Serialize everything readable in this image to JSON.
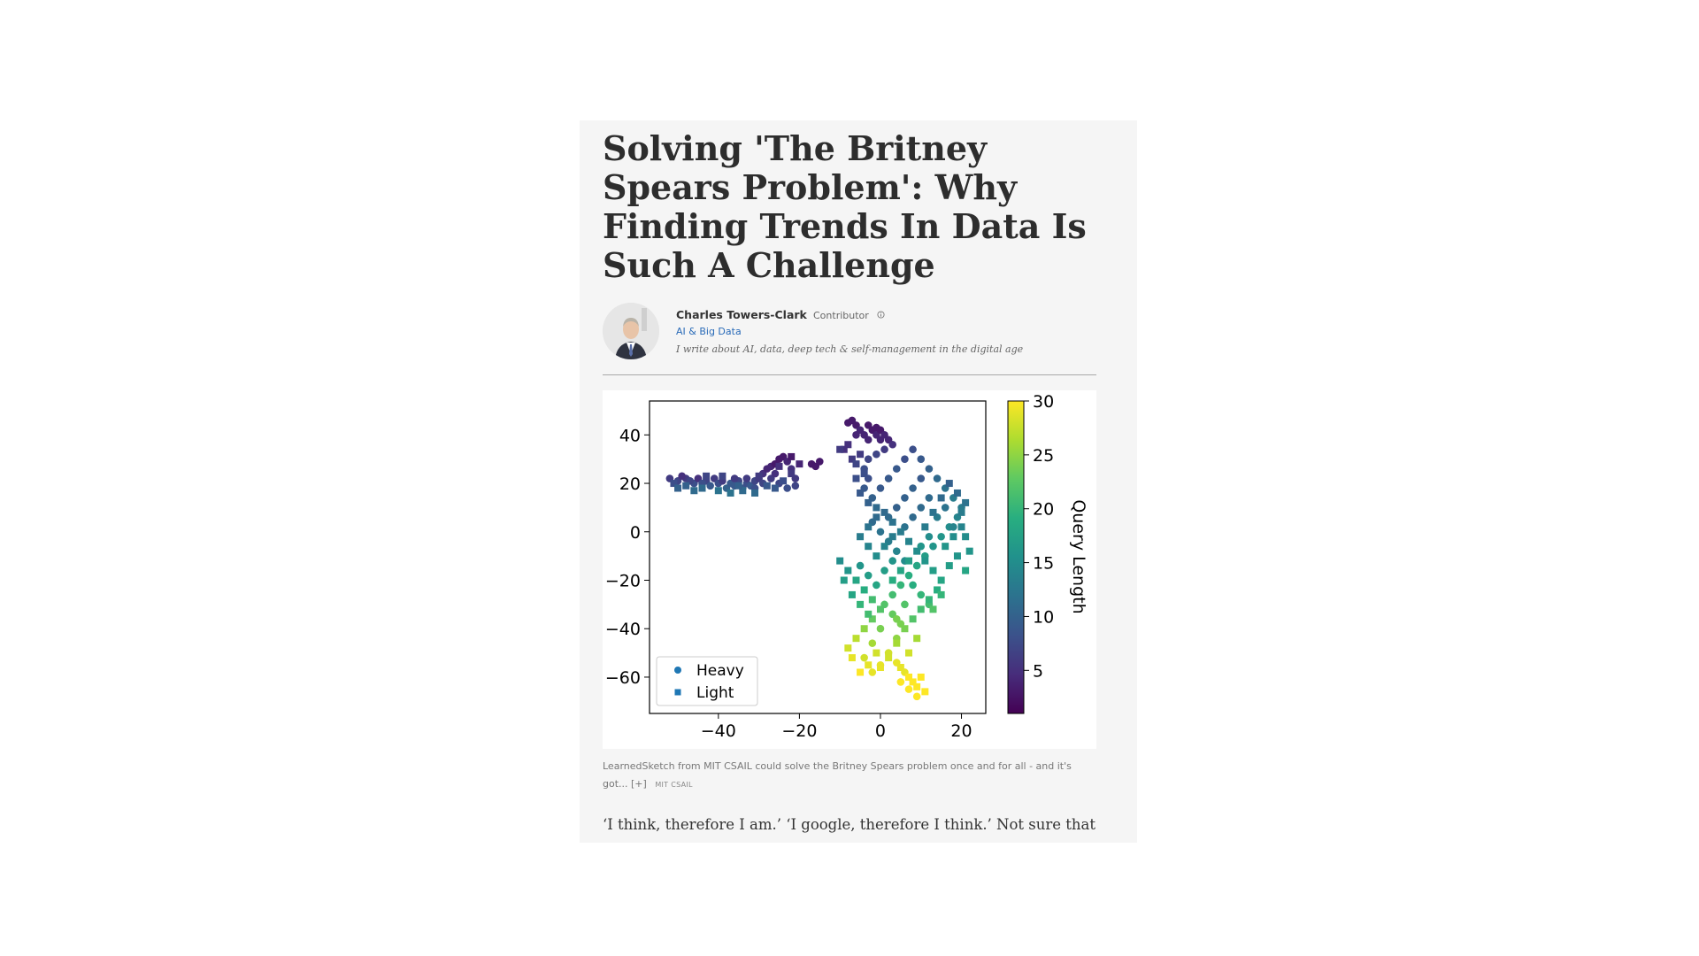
{
  "article": {
    "headline": "Solving 'The Britney Spears Problem': Why Finding Trends In Data Is Such A Challenge",
    "author": {
      "name": "Charles Towers-Clark",
      "role": "Contributor",
      "channel": "AI & Big Data",
      "bio": "I write about AI, data, deep tech & self-management in the digital age",
      "avatar_icon": "author-portrait"
    },
    "figure": {
      "caption": "LearnedSketch from MIT CSAIL could solve the Britney Spears problem once and for all - and it's got... [+]",
      "credit": "MIT CSAIL"
    },
    "body_text": "‘I think, therefore I am.’ ‘I google, therefore I think.’ Not sure that Descartes would agree with this. Search engines are not new, giving us"
  },
  "chart_data": {
    "type": "scatter",
    "xlim": [
      -57,
      26
    ],
    "ylim": [
      -75,
      54
    ],
    "x_ticks": [
      "−40",
      "−20",
      "0",
      "20"
    ],
    "x_tick_values": [
      -40,
      -20,
      0,
      20
    ],
    "y_ticks": [
      "40",
      "20",
      "0",
      "−20",
      "−40",
      "−60"
    ],
    "y_tick_values": [
      40,
      20,
      0,
      -20,
      -40,
      -60
    ],
    "colorbar": {
      "label": "Query Length",
      "range": [
        1,
        30
      ],
      "ticks": [
        "30",
        "25",
        "20",
        "15",
        "10",
        "5"
      ],
      "tick_values": [
        30,
        25,
        20,
        15,
        10,
        5
      ],
      "colormap": "viridis"
    },
    "legend": {
      "position": "lower-left",
      "entries": [
        {
          "label": "Heavy",
          "marker": "circle",
          "color": "#1f77b4"
        },
        {
          "label": "Light",
          "marker": "square",
          "color": "#1f77b4"
        }
      ]
    },
    "series": [
      {
        "name": "Heavy",
        "marker": "circle",
        "points": [
          [
            -52,
            22,
            6
          ],
          [
            -50,
            21,
            7
          ],
          [
            -48,
            22,
            6
          ],
          [
            -46,
            20,
            8
          ],
          [
            -45,
            22,
            5
          ],
          [
            -43,
            21,
            7
          ],
          [
            -42,
            19,
            9
          ],
          [
            -41,
            22,
            6
          ],
          [
            -40,
            20,
            8
          ],
          [
            -39,
            21,
            6
          ],
          [
            -38,
            18,
            10
          ],
          [
            -37,
            20,
            9
          ],
          [
            -36,
            19,
            9
          ],
          [
            -35,
            21,
            7
          ],
          [
            -34,
            18,
            9
          ],
          [
            -33,
            20,
            8
          ],
          [
            -32,
            19,
            9
          ],
          [
            -31,
            21,
            7
          ],
          [
            -30,
            22,
            6
          ],
          [
            -29,
            24,
            5
          ],
          [
            -28,
            26,
            4
          ],
          [
            -27,
            27,
            4
          ],
          [
            -26,
            28,
            3
          ],
          [
            -25,
            30,
            3
          ],
          [
            -24,
            31,
            3
          ],
          [
            -23,
            29,
            4
          ],
          [
            -22,
            26,
            5
          ],
          [
            -21,
            22,
            6
          ],
          [
            -21,
            19,
            7
          ],
          [
            -23,
            18,
            8
          ],
          [
            -25,
            20,
            7
          ],
          [
            -27,
            22,
            6
          ],
          [
            -29,
            20,
            7
          ],
          [
            -31,
            18,
            8
          ],
          [
            -44,
            20,
            8
          ],
          [
            -47,
            21,
            7
          ],
          [
            -49,
            23,
            5
          ],
          [
            -36,
            22,
            6
          ],
          [
            -33,
            22,
            6
          ],
          [
            -26,
            24,
            5
          ],
          [
            -17,
            28,
            3
          ],
          [
            -16,
            27,
            3
          ],
          [
            -15,
            29,
            3
          ],
          [
            -8,
            45,
            3
          ],
          [
            -7,
            46,
            3
          ],
          [
            -6,
            44,
            3
          ],
          [
            -5,
            42,
            4
          ],
          [
            -4,
            40,
            4
          ],
          [
            -3,
            44,
            3
          ],
          [
            -2,
            42,
            3
          ],
          [
            -1,
            40,
            4
          ],
          [
            0,
            38,
            4
          ],
          [
            -1,
            43,
            3
          ],
          [
            -3,
            38,
            4
          ],
          [
            -6,
            40,
            4
          ],
          [
            0,
            42,
            3
          ],
          [
            1,
            40,
            4
          ],
          [
            2,
            38,
            4
          ],
          [
            3,
            36,
            5
          ],
          [
            1,
            34,
            6
          ],
          [
            -1,
            32,
            7
          ],
          [
            -3,
            30,
            7
          ],
          [
            -4,
            26,
            8
          ],
          [
            -3,
            22,
            8
          ],
          [
            -4,
            18,
            9
          ],
          [
            -2,
            14,
            10
          ],
          [
            0,
            18,
            9
          ],
          [
            2,
            22,
            9
          ],
          [
            4,
            26,
            9
          ],
          [
            6,
            30,
            8
          ],
          [
            8,
            34,
            8
          ],
          [
            10,
            30,
            9
          ],
          [
            12,
            26,
            10
          ],
          [
            14,
            22,
            11
          ],
          [
            16,
            18,
            12
          ],
          [
            18,
            14,
            13
          ],
          [
            20,
            10,
            13
          ],
          [
            19,
            6,
            14
          ],
          [
            17,
            2,
            15
          ],
          [
            15,
            -2,
            16
          ],
          [
            13,
            -6,
            16
          ],
          [
            11,
            -10,
            17
          ],
          [
            9,
            -14,
            18
          ],
          [
            7,
            -18,
            19
          ],
          [
            5,
            -22,
            20
          ],
          [
            3,
            -26,
            21
          ],
          [
            1,
            -30,
            22
          ],
          [
            3,
            -34,
            23
          ],
          [
            5,
            -38,
            24
          ],
          [
            4,
            -44,
            25
          ],
          [
            2,
            -50,
            28
          ],
          [
            4,
            -54,
            29
          ],
          [
            6,
            -58,
            29
          ],
          [
            5,
            -62,
            30
          ],
          [
            7,
            -65,
            30
          ],
          [
            9,
            -68,
            30
          ],
          [
            6,
            2,
            12
          ],
          [
            8,
            6,
            11
          ],
          [
            10,
            10,
            11
          ],
          [
            12,
            14,
            11
          ],
          [
            2,
            6,
            11
          ],
          [
            4,
            10,
            10
          ],
          [
            6,
            14,
            10
          ],
          [
            8,
            18,
            10
          ],
          [
            10,
            22,
            9
          ],
          [
            -2,
            4,
            11
          ],
          [
            0,
            0,
            12
          ],
          [
            2,
            -4,
            13
          ],
          [
            4,
            -8,
            14
          ],
          [
            6,
            -12,
            15
          ],
          [
            -5,
            -14,
            16
          ],
          [
            -3,
            -18,
            17
          ],
          [
            -1,
            -22,
            18
          ],
          [
            1,
            -16,
            17
          ],
          [
            3,
            -12,
            16
          ],
          [
            14,
            6,
            13
          ],
          [
            16,
            10,
            12
          ],
          [
            18,
            2,
            14
          ],
          [
            12,
            -2,
            15
          ],
          [
            10,
            -6,
            16
          ],
          [
            8,
            -22,
            19
          ],
          [
            10,
            -26,
            20
          ],
          [
            12,
            -30,
            21
          ],
          [
            6,
            -30,
            22
          ],
          [
            4,
            -36,
            24
          ],
          [
            0,
            -40,
            24
          ],
          [
            -2,
            -46,
            26
          ],
          [
            -4,
            -52,
            28
          ],
          [
            0,
            -55,
            29
          ],
          [
            -2,
            -58,
            29
          ]
        ]
      },
      {
        "name": "Light",
        "marker": "square",
        "points": [
          [
            -51,
            20,
            8
          ],
          [
            -48,
            19,
            10
          ],
          [
            -44,
            18,
            11
          ],
          [
            -40,
            17,
            12
          ],
          [
            -37,
            16,
            12
          ],
          [
            -34,
            17,
            11
          ],
          [
            -31,
            16,
            11
          ],
          [
            -28,
            19,
            9
          ],
          [
            -26,
            18,
            9
          ],
          [
            -24,
            21,
            8
          ],
          [
            -22,
            24,
            6
          ],
          [
            -20,
            28,
            4
          ],
          [
            -22,
            31,
            3
          ],
          [
            -25,
            27,
            5
          ],
          [
            -30,
            23,
            6
          ],
          [
            -35,
            19,
            10
          ],
          [
            -39,
            23,
            7
          ],
          [
            -43,
            23,
            7
          ],
          [
            -46,
            17,
            11
          ],
          [
            -50,
            18,
            10
          ],
          [
            -9,
            34,
            5
          ],
          [
            -8,
            36,
            5
          ],
          [
            -10,
            34,
            6
          ],
          [
            -7,
            30,
            6
          ],
          [
            -6,
            28,
            7
          ],
          [
            -5,
            32,
            6
          ],
          [
            -4,
            24,
            8
          ],
          [
            -6,
            22,
            8
          ],
          [
            -5,
            16,
            9
          ],
          [
            -3,
            12,
            10
          ],
          [
            -1,
            10,
            11
          ],
          [
            1,
            8,
            11
          ],
          [
            3,
            4,
            12
          ],
          [
            5,
            0,
            13
          ],
          [
            7,
            -4,
            14
          ],
          [
            9,
            -8,
            15
          ],
          [
            11,
            -12,
            16
          ],
          [
            13,
            -16,
            17
          ],
          [
            15,
            -20,
            18
          ],
          [
            14,
            -24,
            19
          ],
          [
            12,
            -28,
            20
          ],
          [
            10,
            -32,
            21
          ],
          [
            8,
            -36,
            22
          ],
          [
            6,
            -40,
            24
          ],
          [
            4,
            -46,
            26
          ],
          [
            2,
            -52,
            28
          ],
          [
            0,
            -56,
            29
          ],
          [
            -1,
            -50,
            28
          ],
          [
            -3,
            -55,
            29
          ],
          [
            -5,
            -58,
            30
          ],
          [
            -7,
            -52,
            29
          ],
          [
            -8,
            -48,
            28
          ],
          [
            -6,
            -44,
            27
          ],
          [
            -4,
            -40,
            25
          ],
          [
            -2,
            -36,
            23
          ],
          [
            0,
            -32,
            22
          ],
          [
            -2,
            -28,
            21
          ],
          [
            -4,
            -24,
            19
          ],
          [
            -6,
            -20,
            18
          ],
          [
            -8,
            -16,
            16
          ],
          [
            -10,
            -12,
            15
          ],
          [
            -9,
            -20,
            17
          ],
          [
            -7,
            -26,
            18
          ],
          [
            -5,
            -30,
            20
          ],
          [
            -3,
            -34,
            21
          ],
          [
            16,
            -6,
            16
          ],
          [
            18,
            -2,
            15
          ],
          [
            20,
            2,
            14
          ],
          [
            19,
            -10,
            16
          ],
          [
            17,
            -14,
            17
          ],
          [
            15,
            -26,
            20
          ],
          [
            13,
            -32,
            22
          ],
          [
            9,
            -44,
            26
          ],
          [
            7,
            -50,
            28
          ],
          [
            5,
            -56,
            29
          ],
          [
            7,
            -60,
            30
          ],
          [
            8,
            -62,
            30
          ],
          [
            10,
            -60,
            30
          ],
          [
            9,
            -64,
            30
          ],
          [
            11,
            -66,
            30
          ],
          [
            3,
            -20,
            19
          ],
          [
            5,
            -16,
            18
          ],
          [
            7,
            -12,
            17
          ],
          [
            -1,
            -10,
            15
          ],
          [
            1,
            -6,
            14
          ],
          [
            3,
            -2,
            13
          ],
          [
            -3,
            -6,
            14
          ],
          [
            -5,
            -2,
            13
          ],
          [
            -3,
            2,
            12
          ],
          [
            -1,
            6,
            11
          ],
          [
            11,
            2,
            13
          ],
          [
            13,
            8,
            12
          ],
          [
            15,
            14,
            11
          ],
          [
            17,
            20,
            10
          ],
          [
            19,
            16,
            11
          ],
          [
            21,
            12,
            12
          ],
          [
            20,
            8,
            13
          ],
          [
            21,
            -2,
            15
          ],
          [
            22,
            -8,
            16
          ],
          [
            21,
            -16,
            18
          ]
        ]
      }
    ]
  }
}
